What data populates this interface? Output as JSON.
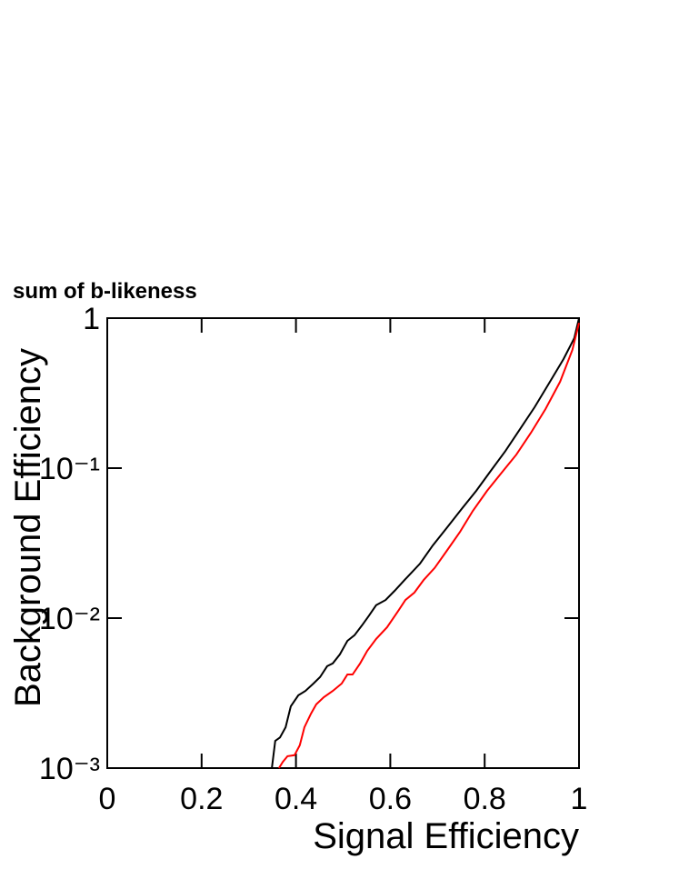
{
  "chart_data": {
    "type": "line",
    "title": "sum of b-likeness",
    "x_label": "Signal Efficiency",
    "y_label": "Background Efficiency",
    "xlim": [
      0,
      1
    ],
    "xticks": [
      0,
      0.2,
      0.4,
      0.6,
      0.8,
      1
    ],
    "ylim": [
      0.001,
      1
    ],
    "log_y": true,
    "yticks": [
      {
        "value": 0.001,
        "label": "10⁻³"
      },
      {
        "value": 0.01,
        "label": "10⁻²"
      },
      {
        "value": 0.1,
        "label": "10⁻¹"
      },
      1
    ],
    "series": [
      {
        "color": "#000000",
        "x": [
          0.349,
          0.356,
          0.366,
          0.378,
          0.389,
          0.405,
          0.42,
          0.437,
          0.451,
          0.466,
          0.478,
          0.493,
          0.509,
          0.524,
          0.54,
          0.555,
          0.57,
          0.59,
          0.609,
          0.632,
          0.663,
          0.69,
          0.721,
          0.751,
          0.782,
          0.813,
          0.844,
          0.875,
          0.906,
          0.936,
          0.967,
          0.99,
          1.0
        ],
        "values": [
          0.001,
          0.00152,
          0.0016,
          0.00187,
          0.00258,
          0.00306,
          0.00327,
          0.00366,
          0.00404,
          0.00478,
          0.00499,
          0.00573,
          0.00705,
          0.00769,
          0.00895,
          0.0104,
          0.0122,
          0.0132,
          0.0152,
          0.0182,
          0.0231,
          0.0305,
          0.0404,
          0.0534,
          0.0705,
          0.0959,
          0.13,
          0.182,
          0.255,
          0.366,
          0.533,
          0.736,
          1
        ]
      },
      {
        "color": "#ff0000",
        "x": [
          0.364,
          0.372,
          0.382,
          0.397,
          0.408,
          0.418,
          0.432,
          0.443,
          0.459,
          0.478,
          0.497,
          0.509,
          0.52,
          0.536,
          0.551,
          0.57,
          0.593,
          0.617,
          0.632,
          0.651,
          0.671,
          0.694,
          0.721,
          0.748,
          0.775,
          0.805,
          0.836,
          0.867,
          0.898,
          0.929,
          0.96,
          0.986,
          1.0
        ],
        "values": [
          0.001,
          0.0011,
          0.0012,
          0.00122,
          0.00142,
          0.00187,
          0.00231,
          0.00266,
          0.00297,
          0.00327,
          0.00366,
          0.00421,
          0.00421,
          0.00499,
          0.00605,
          0.00726,
          0.00869,
          0.0112,
          0.0132,
          0.0148,
          0.018,
          0.0216,
          0.0285,
          0.0377,
          0.0519,
          0.0705,
          0.0933,
          0.123,
          0.172,
          0.248,
          0.377,
          0.614,
          0.93
        ]
      }
    ]
  }
}
